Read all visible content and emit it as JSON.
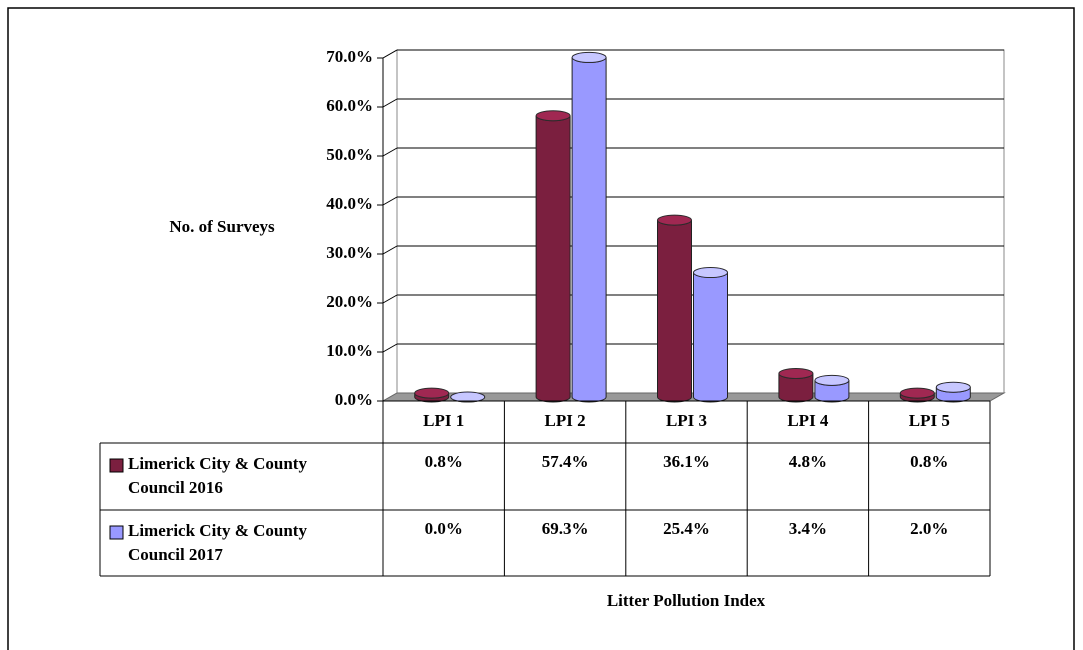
{
  "chart_data": {
    "type": "bar3d",
    "y_axis_label": "No. of Surveys",
    "x_axis_label": "Litter Pollution Index",
    "categories": [
      "LPI 1",
      "LPI 2",
      "LPI 3",
      "LPI 4",
      "LPI 5"
    ],
    "series": [
      {
        "name": "Limerick City & County Council 2016",
        "color": "#7b1f3f",
        "values": [
          0.8,
          57.4,
          36.1,
          4.8,
          0.8
        ],
        "value_labels": [
          "0.8%",
          "57.4%",
          "36.1%",
          "4.8%",
          "0.8%"
        ]
      },
      {
        "name": "Limerick City & County Council 2017",
        "color": "#9999ff",
        "values": [
          0.0,
          69.3,
          25.4,
          3.4,
          2.0
        ],
        "value_labels": [
          "0.0%",
          "69.3%",
          "25.4%",
          "3.4%",
          "2.0%"
        ]
      }
    ],
    "ylim": [
      0,
      70
    ],
    "yticks": [
      {
        "value": 0,
        "label": "0.0%"
      },
      {
        "value": 10,
        "label": "10.0%"
      },
      {
        "value": 20,
        "label": "20.0%"
      },
      {
        "value": 30,
        "label": "30.0%"
      },
      {
        "value": 40,
        "label": "40.0%"
      },
      {
        "value": 50,
        "label": "50.0%"
      },
      {
        "value": 60,
        "label": "60.0%"
      },
      {
        "value": 70,
        "label": "70.0%"
      }
    ],
    "grid": true
  }
}
